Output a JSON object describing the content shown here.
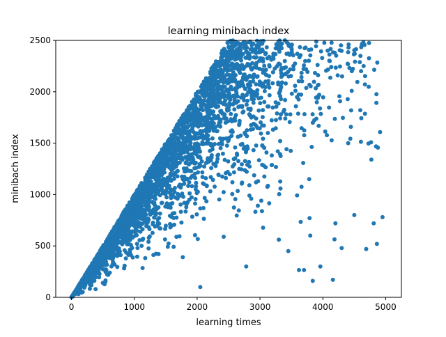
{
  "chart_data": {
    "type": "scatter",
    "title": "learning minibach index",
    "xlabel": "learning times",
    "ylabel": "minibach index",
    "xlim": [
      -250,
      5250
    ],
    "ylim": [
      0,
      2500
    ],
    "xticks": [
      0,
      1000,
      2000,
      3000,
      4000,
      5000
    ],
    "xtick_labels": [
      "0",
      "1000",
      "2000",
      "3000",
      "4000",
      "5000"
    ],
    "yticks": [
      0,
      500,
      1000,
      1500,
      2000,
      2500
    ],
    "ytick_labels": [
      "0",
      "500",
      "1000",
      "1500",
      "2000",
      "2500"
    ],
    "grid": false,
    "legend": "none",
    "series": [
      {
        "color": "#1f77b4",
        "point_count": 5000,
        "description_of_distribution": "each x in 0..5000; y uniformly sampled with most points near the upper bound y = x, sparser toward y = 0",
        "sample_points": [
          {
            "x": 2050,
            "y": 100
          },
          {
            "x": 2780,
            "y": 300
          },
          {
            "x": 3620,
            "y": 265
          },
          {
            "x": 3700,
            "y": 265
          },
          {
            "x": 3840,
            "y": 160
          },
          {
            "x": 3960,
            "y": 300
          },
          {
            "x": 4160,
            "y": 170
          },
          {
            "x": 4300,
            "y": 480
          },
          {
            "x": 4690,
            "y": 470
          },
          {
            "x": 4860,
            "y": 520
          },
          {
            "x": 4950,
            "y": 780
          },
          {
            "x": 4810,
            "y": 720
          },
          {
            "x": 4500,
            "y": 800
          },
          {
            "x": 4200,
            "y": 720
          },
          {
            "x": 3800,
            "y": 600
          },
          {
            "x": 3450,
            "y": 450
          },
          {
            "x": 3300,
            "y": 560
          }
        ]
      }
    ]
  }
}
